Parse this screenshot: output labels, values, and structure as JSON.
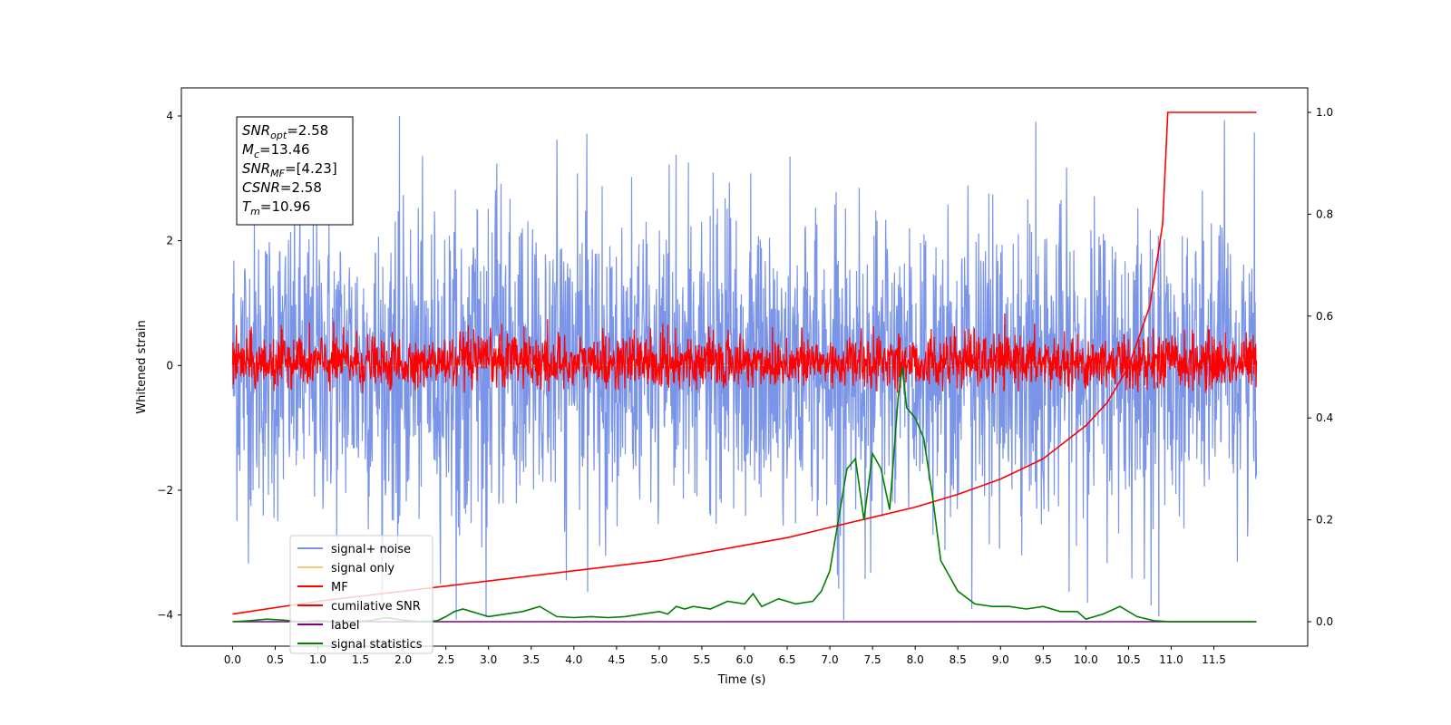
{
  "chart_data": {
    "type": "line",
    "xlabel": "Time (s)",
    "ylabel": "Whitened strain",
    "xlim": [
      -0.6,
      12.6
    ],
    "ylim": [
      -4.5,
      4.45
    ],
    "y2lim": [
      -0.048,
      1.048
    ],
    "x_ticks": [
      "0.0",
      "0.5",
      "1.0",
      "1.5",
      "2.0",
      "2.5",
      "3.0",
      "3.5",
      "4.0",
      "4.5",
      "5.0",
      "5.5",
      "6.0",
      "6.5",
      "7.0",
      "7.5",
      "8.0",
      "8.5",
      "9.0",
      "9.5",
      "10.0",
      "10.5",
      "11.0",
      "11.5"
    ],
    "y_ticks": [
      "4",
      "2",
      "0",
      "−2",
      "−4"
    ],
    "y2_ticks": [
      "1.0",
      "0.8",
      "0.6",
      "0.4",
      "0.2",
      "0.0"
    ],
    "grid": false,
    "legend_position": "lower-left",
    "info_box": {
      "lines": [
        {
          "sym": "SNR",
          "sub": "opt",
          "rest": "=2.58"
        },
        {
          "sym": "M",
          "sub": "c",
          "rest": "=13.46"
        },
        {
          "sym": "SNR",
          "sub": "MF",
          "rest": "=[4.23]"
        },
        {
          "sym": "CSNR",
          "sub": "",
          "rest": "=2.58"
        },
        {
          "sym": "T",
          "sub": "m",
          "rest": "=10.96"
        }
      ]
    },
    "series": [
      {
        "name": "signal+ noise",
        "color": "#7a94e8",
        "axis": "left",
        "style": "noise",
        "x_range": [
          0,
          12
        ],
        "envelope": [
          -2.2,
          2.2
        ],
        "peak_max": 4.02,
        "peak_min": -4.1
      },
      {
        "name": "signal only",
        "color": "#f5c97a",
        "axis": "left",
        "style": "flat",
        "y": 0
      },
      {
        "name": "MF",
        "color": "#ff0000",
        "axis": "left",
        "style": "noise",
        "x_range": [
          0,
          12
        ],
        "envelope": [
          -0.35,
          0.45
        ],
        "peak_max": 1.0,
        "peak_min": -0.45
      },
      {
        "name": "cumilative SNR",
        "color": "#ff0000",
        "axis": "right",
        "style": "line",
        "x": [
          0,
          1,
          2,
          3,
          4,
          5,
          6,
          6.5,
          7,
          7.5,
          8,
          8.5,
          9,
          9.5,
          10,
          10.25,
          10.5,
          10.75,
          10.9,
          10.96,
          11.0,
          12.0
        ],
        "y": [
          0.015,
          0.04,
          0.06,
          0.08,
          0.1,
          0.12,
          0.15,
          0.165,
          0.185,
          0.205,
          0.225,
          0.25,
          0.28,
          0.32,
          0.385,
          0.43,
          0.5,
          0.62,
          0.78,
          1.0,
          1.0,
          1.0
        ]
      },
      {
        "name": "label",
        "color": "#800080",
        "axis": "right",
        "style": "line",
        "x": [
          0,
          12.0
        ],
        "y": [
          0.0,
          0.0
        ]
      },
      {
        "name": "signal statistics",
        "color": "#008000",
        "axis": "right",
        "style": "line",
        "x": [
          0,
          0.2,
          0.4,
          0.6,
          0.8,
          1.0,
          1.2,
          1.4,
          1.6,
          1.8,
          2.0,
          2.2,
          2.4,
          2.5,
          2.6,
          2.7,
          2.8,
          2.9,
          3.0,
          3.2,
          3.4,
          3.6,
          3.8,
          4.0,
          4.2,
          4.4,
          4.6,
          4.8,
          5.0,
          5.1,
          5.2,
          5.3,
          5.4,
          5.6,
          5.8,
          6.0,
          6.1,
          6.2,
          6.4,
          6.6,
          6.8,
          6.9,
          7.0,
          7.1,
          7.2,
          7.3,
          7.4,
          7.5,
          7.6,
          7.7,
          7.8,
          7.85,
          7.9,
          8.0,
          8.1,
          8.2,
          8.3,
          8.5,
          8.7,
          8.9,
          9.1,
          9.3,
          9.5,
          9.7,
          9.9,
          10.0,
          10.2,
          10.4,
          10.6,
          10.8,
          11.0,
          11.5,
          12.0
        ],
        "y": [
          0.0,
          0.002,
          0.005,
          0.003,
          0.0,
          0.002,
          0.0,
          0.0,
          0.002,
          0.008,
          0.003,
          0.0,
          0.002,
          0.01,
          0.02,
          0.025,
          0.02,
          0.015,
          0.01,
          0.015,
          0.02,
          0.03,
          0.01,
          0.008,
          0.01,
          0.008,
          0.01,
          0.015,
          0.02,
          0.015,
          0.03,
          0.025,
          0.03,
          0.025,
          0.04,
          0.035,
          0.055,
          0.03,
          0.045,
          0.035,
          0.04,
          0.06,
          0.1,
          0.2,
          0.3,
          0.32,
          0.2,
          0.33,
          0.3,
          0.22,
          0.44,
          0.5,
          0.42,
          0.4,
          0.36,
          0.25,
          0.12,
          0.06,
          0.035,
          0.03,
          0.03,
          0.025,
          0.03,
          0.02,
          0.02,
          0.005,
          0.015,
          0.03,
          0.01,
          0.002,
          0.0,
          0.0,
          0.0
        ]
      }
    ]
  }
}
